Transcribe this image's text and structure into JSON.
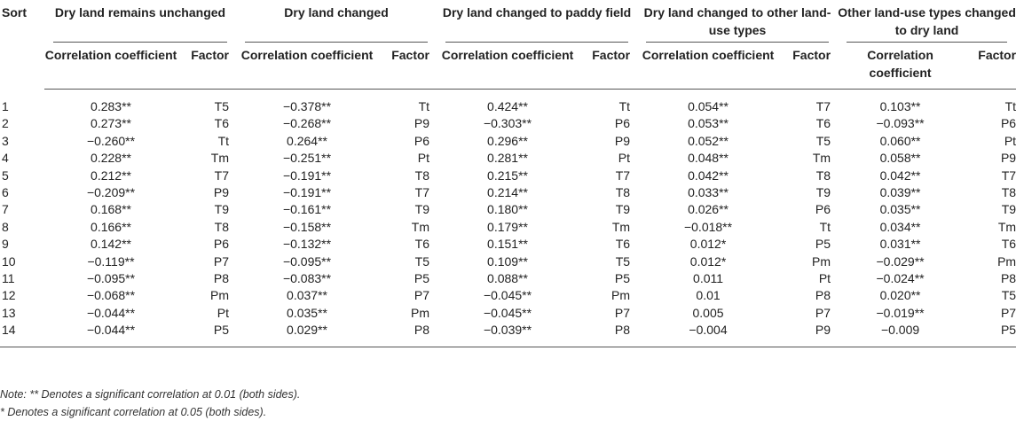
{
  "header": {
    "sort": "Sort",
    "groups": [
      "Dry land remains unchanged",
      "Dry land changed",
      "Dry land changed to paddy field",
      "Dry land changed to other land-use types",
      "Other land-use types changed to dry land"
    ],
    "corr": "Correlation coefficient",
    "factor": "Factor"
  },
  "rows": [
    {
      "sort": "1",
      "cells": [
        [
          "0.283**",
          "T5"
        ],
        [
          "−0.378**",
          "Tt"
        ],
        [
          "0.424**",
          "Tt"
        ],
        [
          "0.054**",
          "T7"
        ],
        [
          "0.103**",
          "Tt"
        ]
      ]
    },
    {
      "sort": "2",
      "cells": [
        [
          "0.273**",
          "T6"
        ],
        [
          "−0.268**",
          "P9"
        ],
        [
          "−0.303**",
          "P6"
        ],
        [
          "0.053**",
          "T6"
        ],
        [
          "−0.093**",
          "P6"
        ]
      ]
    },
    {
      "sort": "3",
      "cells": [
        [
          "−0.260**",
          "Tt"
        ],
        [
          "0.264**",
          "P6"
        ],
        [
          "0.296**",
          "P9"
        ],
        [
          "0.052**",
          "T5"
        ],
        [
          "0.060**",
          "Pt"
        ]
      ]
    },
    {
      "sort": "4",
      "cells": [
        [
          "0.228**",
          "Tm"
        ],
        [
          "−0.251**",
          "Pt"
        ],
        [
          "0.281**",
          "Pt"
        ],
        [
          "0.048**",
          "Tm"
        ],
        [
          "0.058**",
          "P9"
        ]
      ]
    },
    {
      "sort": "5",
      "cells": [
        [
          "0.212**",
          "T7"
        ],
        [
          "−0.191**",
          "T8"
        ],
        [
          "0.215**",
          "T7"
        ],
        [
          "0.042**",
          "T8"
        ],
        [
          "0.042**",
          "T7"
        ]
      ]
    },
    {
      "sort": "6",
      "cells": [
        [
          "−0.209**",
          "P9"
        ],
        [
          "−0.191**",
          "T7"
        ],
        [
          "0.214**",
          "T8"
        ],
        [
          "0.033**",
          "T9"
        ],
        [
          "0.039**",
          "T8"
        ]
      ]
    },
    {
      "sort": "7",
      "cells": [
        [
          "0.168**",
          "T9"
        ],
        [
          "−0.161**",
          "T9"
        ],
        [
          "0.180**",
          "T9"
        ],
        [
          "0.026**",
          "P6"
        ],
        [
          "0.035**",
          "T9"
        ]
      ]
    },
    {
      "sort": "8",
      "cells": [
        [
          "0.166**",
          "T8"
        ],
        [
          "−0.158**",
          "Tm"
        ],
        [
          "0.179**",
          "Tm"
        ],
        [
          "−0.018**",
          "Tt"
        ],
        [
          "0.034**",
          "Tm"
        ]
      ]
    },
    {
      "sort": "9",
      "cells": [
        [
          "0.142**",
          "P6"
        ],
        [
          "−0.132**",
          "T6"
        ],
        [
          "0.151**",
          "T6"
        ],
        [
          "0.012*",
          "P5"
        ],
        [
          "0.031**",
          "T6"
        ]
      ]
    },
    {
      "sort": "10",
      "cells": [
        [
          "−0.119**",
          "P7"
        ],
        [
          "−0.095**",
          "T5"
        ],
        [
          "0.109**",
          "T5"
        ],
        [
          "0.012*",
          "Pm"
        ],
        [
          "−0.029**",
          "Pm"
        ]
      ]
    },
    {
      "sort": "11",
      "cells": [
        [
          "−0.095**",
          "P8"
        ],
        [
          "−0.083**",
          "P5"
        ],
        [
          "0.088**",
          "P5"
        ],
        [
          "0.011",
          "Pt"
        ],
        [
          "−0.024**",
          "P8"
        ]
      ]
    },
    {
      "sort": "12",
      "cells": [
        [
          "−0.068**",
          "Pm"
        ],
        [
          "0.037**",
          "P7"
        ],
        [
          "−0.045**",
          "Pm"
        ],
        [
          "0.01",
          "P8"
        ],
        [
          "0.020**",
          "T5"
        ]
      ]
    },
    {
      "sort": "13",
      "cells": [
        [
          "−0.044**",
          "Pt"
        ],
        [
          "0.035**",
          "Pm"
        ],
        [
          "−0.045**",
          "P7"
        ],
        [
          "0.005",
          "P7"
        ],
        [
          "−0.019**",
          "P7"
        ]
      ]
    },
    {
      "sort": "14",
      "cells": [
        [
          "−0.044**",
          "P5"
        ],
        [
          "0.029**",
          "P8"
        ],
        [
          "−0.039**",
          "P8"
        ],
        [
          "−0.004",
          "P9"
        ],
        [
          "−0.009",
          "P5"
        ]
      ]
    }
  ],
  "notes": [
    "Note: ** Denotes a significant correlation at 0.01 (both sides).",
    "* Denotes a significant correlation at 0.05 (both sides)."
  ]
}
